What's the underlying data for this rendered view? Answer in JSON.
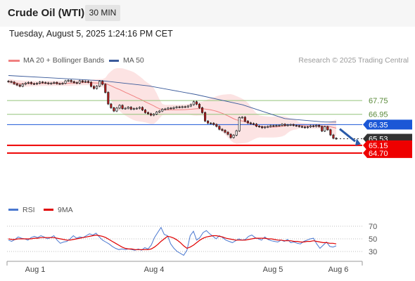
{
  "header": {
    "title": "Crude Oil (WTI)",
    "timeframe": "30 MIN"
  },
  "datetime": "Tuesday, August 5, 2025 1:24:16 PM CET",
  "copyright": "Research © 2025 Trading Central",
  "legend": {
    "bollinger": {
      "label": "MA 20 + Bollinger Bands",
      "color": "#f08080"
    },
    "ma50": {
      "label": "MA 50",
      "color": "#3a5a9a"
    }
  },
  "rsi_legend": {
    "rsi": {
      "label": "RSI",
      "color": "#4a78d0"
    },
    "ma9": {
      "label": "9MA",
      "color": "#e00000"
    }
  },
  "colors": {
    "up": "#ffffff",
    "down": "#c01818",
    "pivot_blue": "#1b57d6",
    "support_red": "#ee0000",
    "resistance_green": "#94c47a",
    "last_price": "#333333",
    "arrow": "#2a5aa8"
  },
  "chart_data": [
    {
      "type": "candlestick",
      "title": "",
      "x_ticks": [
        "Aug 1",
        "Aug 4",
        "Aug 5",
        "Aug 6"
      ],
      "ylim": [
        62.9,
        69.1
      ],
      "close": [
        68.85,
        68.82,
        68.72,
        68.65,
        68.58,
        68.7,
        68.76,
        68.8,
        68.73,
        68.71,
        68.75,
        68.82,
        68.79,
        68.77,
        68.73,
        68.76,
        68.8,
        68.73,
        68.72,
        68.75,
        68.89,
        68.92,
        68.85,
        68.79,
        68.76,
        68.89,
        68.83,
        68.86,
        68.81,
        68.57,
        68.45,
        68.58,
        68.87,
        68.69,
        68.22,
        67.55,
        67.33,
        67.14,
        67.31,
        67.47,
        67.28,
        67.3,
        67.36,
        67.25,
        67.28,
        67.3,
        67.35,
        67.2,
        67.05,
        66.98,
        66.9,
        66.96,
        67.08,
        67.14,
        67.24,
        67.26,
        67.31,
        67.29,
        67.34,
        67.38,
        67.36,
        67.39,
        67.38,
        67.43,
        67.51,
        67.68,
        67.54,
        67.33,
        67.05,
        66.56,
        66.44,
        66.43,
        66.36,
        66.25,
        66.08,
        66.02,
        65.91,
        65.79,
        65.6,
        65.74,
        65.99,
        66.76,
        66.78,
        66.55,
        66.45,
        66.41,
        66.38,
        66.26,
        66.23,
        66.17,
        66.21,
        66.24,
        66.29,
        66.27,
        66.3,
        66.31,
        66.37,
        66.3,
        66.33,
        66.35,
        66.3,
        66.28,
        66.24,
        66.21,
        66.18,
        66.22,
        66.28,
        66.25,
        66.31,
        66.24,
        65.98,
        66.23,
        66.05,
        65.75,
        65.56,
        65.53
      ],
      "levels": [
        {
          "label": "67.75",
          "value": 67.75,
          "kind": "resistance"
        },
        {
          "label": "66.95",
          "value": 66.95,
          "kind": "resistance"
        },
        {
          "label": "66.35",
          "value": 66.35,
          "kind": "pivot"
        },
        {
          "label": "65.53",
          "value": 65.53,
          "kind": "last"
        },
        {
          "label": "65.15",
          "value": 65.15,
          "kind": "support"
        },
        {
          "label": "64.70",
          "value": 64.7,
          "kind": "support"
        }
      ],
      "ma50_path": [
        [
          0,
          69.2
        ],
        [
          20,
          69.05
        ],
        [
          40,
          68.9
        ],
        [
          60,
          68.6
        ],
        [
          80,
          68.1
        ],
        [
          100,
          67.5
        ],
        [
          118,
          66.7
        ],
        [
          135,
          66.5
        ],
        [
          140,
          66.5
        ]
      ]
    },
    {
      "type": "line",
      "title": "RSI",
      "ylim": [
        20,
        80
      ],
      "y_ticks": [
        70,
        50,
        30
      ],
      "rsi": [
        48,
        46,
        49,
        53,
        51,
        50,
        48,
        52,
        54,
        52,
        55,
        53,
        50,
        52,
        55,
        48,
        43,
        45,
        46,
        50,
        55,
        51,
        53,
        52,
        55,
        58,
        56,
        59,
        53,
        48,
        45,
        42,
        38,
        35,
        33,
        34,
        33,
        34,
        33,
        32,
        34,
        32,
        36,
        34,
        40,
        52,
        60,
        68,
        57,
        55,
        42,
        35,
        30,
        27,
        24,
        32,
        55,
        62,
        48,
        52,
        60,
        63,
        58,
        54,
        50,
        55,
        52,
        48,
        46,
        44,
        47,
        50,
        48,
        49,
        54,
        56,
        52,
        50,
        48,
        53,
        49,
        47,
        46,
        45,
        48,
        46,
        49,
        44,
        45,
        43,
        42,
        46,
        48,
        50,
        51,
        42,
        35,
        40,
        45,
        38,
        37,
        39
      ],
      "ma9": [
        50,
        49,
        49,
        50,
        50,
        50,
        50,
        50,
        51,
        51,
        52,
        52,
        52,
        52,
        52,
        51,
        50,
        49,
        48,
        48,
        49,
        50,
        51,
        52,
        53,
        54,
        55,
        56,
        55,
        54,
        52,
        49,
        46,
        43,
        40,
        37,
        35,
        34,
        34,
        33,
        33,
        33,
        33,
        33,
        34,
        37,
        41,
        46,
        50,
        54,
        53,
        51,
        48,
        44,
        39,
        35,
        37,
        40,
        44,
        48,
        51,
        53,
        54,
        55,
        55,
        54,
        53,
        51,
        50,
        49,
        48,
        48,
        48,
        48,
        49,
        50,
        51,
        51,
        51,
        51,
        50,
        50,
        49,
        48,
        48,
        47,
        47,
        47,
        46,
        46,
        45,
        45,
        46,
        46,
        47,
        46,
        45,
        44,
        44,
        43,
        43,
        42
      ]
    }
  ]
}
